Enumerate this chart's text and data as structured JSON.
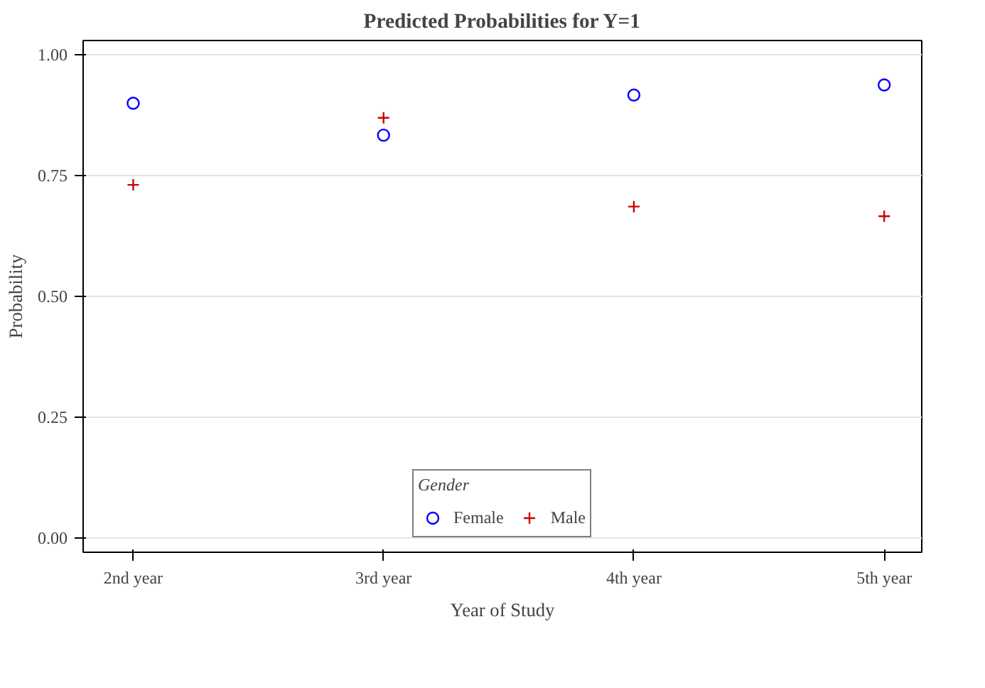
{
  "chart_data": {
    "type": "scatter",
    "title": "Predicted Probabilities for Y=1",
    "xlabel": "Year of Study",
    "ylabel": "Probability",
    "legend_title": "Gender",
    "categories": [
      "2nd year",
      "3rd year",
      "4th year",
      "5th year"
    ],
    "series": [
      {
        "name": "Female",
        "color": "#0000ff",
        "marker": "circle",
        "values": [
          0.9,
          0.834,
          0.917,
          0.938
        ]
      },
      {
        "name": "Male",
        "color": "#cc0000",
        "marker": "cross",
        "values": [
          0.731,
          0.87,
          0.686,
          0.666
        ]
      }
    ],
    "ylim": [
      -0.03,
      1.03
    ],
    "yticks": [
      {
        "value": 0,
        "label": "0.00"
      },
      {
        "value": 0.25,
        "label": "0.25"
      },
      {
        "value": 0.5,
        "label": "0.50"
      },
      {
        "value": 0.75,
        "label": "0.75"
      },
      {
        "value": 1,
        "label": "1.00"
      }
    ],
    "grid": "y",
    "legend": "bottom"
  }
}
